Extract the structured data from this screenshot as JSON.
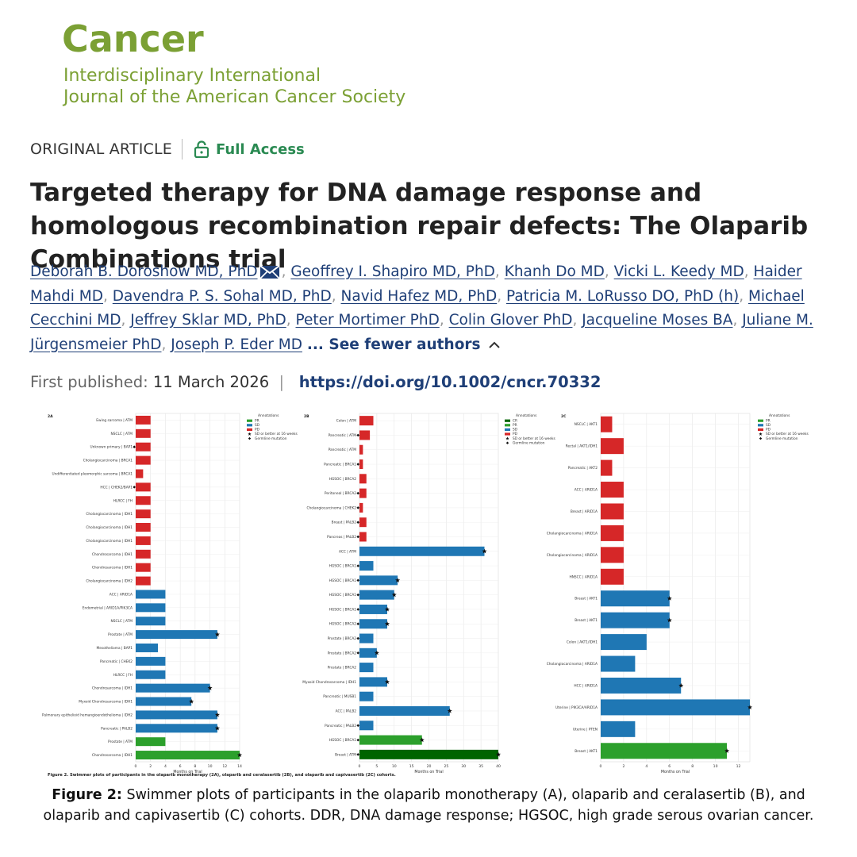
{
  "header": {
    "journal": "Cancer",
    "subtitle_line1": "Interdisciplinary International",
    "subtitle_line2": "Journal of the American Cancer Society"
  },
  "article": {
    "type": "ORIGINAL ARTICLE",
    "access": "Full Access",
    "title": "Targeted therapy for DNA damage response and homologous recombination repair defects: The Olaparib Combinations trial",
    "authors": [
      "Deborah B. Doroshow MD, PhD",
      "Geoffrey I. Shapiro MD, PhD",
      "Khanh Do MD",
      "Vicki L. Keedy MD",
      "Haider Mahdi MD",
      "Davendra P. S. Sohal MD, PhD",
      "Navid Hafez MD, PhD",
      "Patricia M. LoRusso DO, PhD (h)",
      "Michael Cecchini MD",
      "Jeffrey Sklar MD, PhD",
      "Peter Mortimer PhD",
      "Colin Glover PhD",
      "Jacqueline Moses BA",
      "Juliane M. Jürgensmeier PhD",
      "Joseph P. Eder MD"
    ],
    "see_fewer": "... See fewer authors",
    "published_label": "First published:",
    "published_date": "11 March 2026",
    "doi": "https://doi.org/10.1002/cncr.70332"
  },
  "figure": {
    "inner_caption": "Figure 2. Swimmer plots of participants in the olaparib monotherapy (2A), olaparib and ceralasertib (2B), and olaparib and capivasertib (2C) cohorts.",
    "caption_label": "Figure 2:",
    "caption_text": " Swimmer plots of participants in the olaparib monotherapy (A), olaparib and ceralasertib (B), and olaparib and capivasertib (C) cohorts. DDR, DNA damage response; HGSOC, high grade serous ovarian cancer."
  },
  "chart_data": [
    {
      "type": "bar",
      "panel": "2A",
      "orientation": "horizontal",
      "xlabel": "Months on Trial",
      "xlim": [
        0,
        14
      ],
      "xticks": [
        0,
        2,
        4,
        6,
        8,
        10,
        12,
        14
      ],
      "grid": true,
      "legend": {
        "title": "Annotations",
        "position": "top-right",
        "entries": [
          {
            "label": "PR",
            "color": "#2ca02c",
            "kind": "patch"
          },
          {
            "label": "SD",
            "color": "#1f77b4",
            "kind": "patch"
          },
          {
            "label": "PD",
            "color": "#d62728",
            "kind": "patch"
          },
          {
            "label": "SD or better at 16 weeks",
            "kind": "star"
          },
          {
            "label": "Germline mutation",
            "kind": "diamond"
          }
        ]
      },
      "rows": [
        {
          "label": "Ewing sarcoma | ATM",
          "value": 2,
          "response": "PD"
        },
        {
          "label": "NSCLC | ATM",
          "value": 2,
          "response": "PD"
        },
        {
          "label": "Unknown primary | BAP1",
          "value": 2,
          "response": "PD",
          "germline": true
        },
        {
          "label": "Cholangiocarcinoma | BRCA1",
          "value": 2,
          "response": "PD"
        },
        {
          "label": "Undifferentiated pleomorphic sarcoma | BRCA1",
          "value": 1,
          "response": "PD"
        },
        {
          "label": "HCC | CHEK2/BAP1",
          "value": 2,
          "response": "PD",
          "germline": true
        },
        {
          "label": "HLRCC | FH",
          "value": 2,
          "response": "PD"
        },
        {
          "label": "Cholangiocarcinoma | IDH1",
          "value": 2,
          "response": "PD"
        },
        {
          "label": "Cholangiocarcinoma | IDH1",
          "value": 2,
          "response": "PD"
        },
        {
          "label": "Cholangiocarcinoma | IDH1",
          "value": 2,
          "response": "PD"
        },
        {
          "label": "Chondrosarcoma | IDH1",
          "value": 2,
          "response": "PD"
        },
        {
          "label": "Chondrosarcoma | IDH1",
          "value": 2,
          "response": "PD"
        },
        {
          "label": "Cholangiocarcinoma | IDH2",
          "value": 2,
          "response": "PD"
        },
        {
          "label": "ACC | ARID1A",
          "value": 4,
          "response": "SD"
        },
        {
          "label": "Endometrial | ARID1A/PIK3CA",
          "value": 4,
          "response": "SD"
        },
        {
          "label": "NSCLC | ATM",
          "value": 4,
          "response": "SD"
        },
        {
          "label": "Prostate | ATM",
          "value": 11,
          "response": "SD",
          "star": true
        },
        {
          "label": "Mesothelioma | BAP1",
          "value": 3,
          "response": "SD"
        },
        {
          "label": "Pancreatic | CHEK2",
          "value": 4,
          "response": "SD"
        },
        {
          "label": "HLRCC | FH",
          "value": 4,
          "response": "SD"
        },
        {
          "label": "Chondrosarcoma | IDH1",
          "value": 10,
          "response": "SD",
          "star": true
        },
        {
          "label": "Myxoid Chondrosarcoma | IDH1",
          "value": 7.5,
          "response": "SD",
          "star": true
        },
        {
          "label": "Pulmonary epithelioid hemangioendothelioma | IDH2",
          "value": 11,
          "response": "SD",
          "star": true
        },
        {
          "label": "Pancreatic | PALB2",
          "value": 11,
          "response": "SD",
          "star": true
        },
        {
          "label": "Prostate | ATM",
          "value": 4,
          "response": "PR"
        },
        {
          "label": "Chondrosarcoma | IDH1",
          "value": 14,
          "response": "PR",
          "star": true
        }
      ]
    },
    {
      "type": "bar",
      "panel": "2B",
      "orientation": "horizontal",
      "xlabel": "Months on Trial",
      "xlim": [
        0,
        40
      ],
      "xticks": [
        0,
        5,
        10,
        15,
        20,
        25,
        30,
        35,
        40
      ],
      "grid": true,
      "legend": {
        "title": "Annotations",
        "position": "top-right",
        "entries": [
          {
            "label": "CR",
            "color": "#006400",
            "kind": "patch"
          },
          {
            "label": "PR",
            "color": "#2ca02c",
            "kind": "patch"
          },
          {
            "label": "SD",
            "color": "#1f77b4",
            "kind": "patch"
          },
          {
            "label": "PD",
            "color": "#d62728",
            "kind": "patch"
          },
          {
            "label": "SD or better at 16 weeks",
            "kind": "star"
          },
          {
            "label": "Germline mutation",
            "kind": "diamond"
          }
        ]
      },
      "rows": [
        {
          "label": "Colon | ATM",
          "value": 4,
          "response": "PD"
        },
        {
          "label": "Pancreatic | ATM",
          "value": 3,
          "response": "PD",
          "germline": true
        },
        {
          "label": "Pancreatic | ATM",
          "value": 1,
          "response": "PD"
        },
        {
          "label": "Pancreatic | BRCA1",
          "value": 1,
          "response": "PD",
          "germline": true
        },
        {
          "label": "HGSOC | BRCA2",
          "value": 2,
          "response": "PD"
        },
        {
          "label": "Peritoneal | BRCA2",
          "value": 2,
          "response": "PD",
          "germline": true
        },
        {
          "label": "Cholangiocarcinoma | CHEK2",
          "value": 1,
          "response": "PD",
          "germline": true
        },
        {
          "label": "Breast | PALB2",
          "value": 2,
          "response": "PD",
          "germline": true
        },
        {
          "label": "Pancreas | PALB2",
          "value": 2,
          "response": "PD",
          "germline": true
        },
        {
          "label": "ACC | ATM",
          "value": 36,
          "response": "SD",
          "star": true
        },
        {
          "label": "HGSOC | BRCA1",
          "value": 4,
          "response": "SD",
          "germline": true
        },
        {
          "label": "HGSOC | BRCA1",
          "value": 11,
          "response": "SD",
          "star": true,
          "germline": true
        },
        {
          "label": "HGSOC | BRCA1",
          "value": 10,
          "response": "SD",
          "star": true,
          "germline": true
        },
        {
          "label": "HGSOC | BRCA1",
          "value": 8,
          "response": "SD",
          "star": true,
          "germline": true
        },
        {
          "label": "HGSOC | BRCA2",
          "value": 8,
          "response": "SD",
          "star": true,
          "germline": true
        },
        {
          "label": "Prostate | BRCA2",
          "value": 4,
          "response": "SD",
          "germline": true
        },
        {
          "label": "Prostate | BRCA2",
          "value": 5,
          "response": "SD",
          "star": true,
          "germline": true
        },
        {
          "label": "Prostate | BRCA2",
          "value": 4,
          "response": "SD"
        },
        {
          "label": "Myxoid Chondrosarcoma | IDH1",
          "value": 8,
          "response": "SD",
          "star": true
        },
        {
          "label": "Pancreatic | MUSB1",
          "value": 4,
          "response": "SD"
        },
        {
          "label": "ACC | PALB2",
          "value": 26,
          "response": "SD",
          "star": true
        },
        {
          "label": "Pancreatic | PALB2",
          "value": 4,
          "response": "SD",
          "germline": true
        },
        {
          "label": "HGSOC | BRCA1",
          "value": 18,
          "response": "PR",
          "star": true,
          "germline": true
        },
        {
          "label": "Breast | ATM",
          "value": 40,
          "response": "CR",
          "star": true,
          "germline": true
        }
      ]
    },
    {
      "type": "bar",
      "panel": "2C",
      "orientation": "horizontal",
      "xlabel": "Months on Trial",
      "xlim": [
        0,
        13
      ],
      "xticks": [
        0,
        2,
        4,
        6,
        8,
        10,
        12
      ],
      "grid": true,
      "legend": {
        "title": "Annotations",
        "position": "top-right",
        "entries": [
          {
            "label": "PR",
            "color": "#2ca02c",
            "kind": "patch"
          },
          {
            "label": "SD",
            "color": "#1f77b4",
            "kind": "patch"
          },
          {
            "label": "PD",
            "color": "#d62728",
            "kind": "patch"
          },
          {
            "label": "SD or better at 16 weeks",
            "kind": "star"
          },
          {
            "label": "Germline mutation",
            "kind": "diamond"
          }
        ]
      },
      "rows": [
        {
          "label": "NSCLC | AKT1",
          "value": 1,
          "response": "PD"
        },
        {
          "label": "Rectal | AKT1/IDH1",
          "value": 2,
          "response": "PD"
        },
        {
          "label": "Pancreatic | AKT2",
          "value": 1,
          "response": "PD"
        },
        {
          "label": "ACC | ARID1A",
          "value": 2,
          "response": "PD"
        },
        {
          "label": "Breast | ARID1A",
          "value": 2,
          "response": "PD"
        },
        {
          "label": "Cholangiocarcinoma | ARID1A",
          "value": 2,
          "response": "PD"
        },
        {
          "label": "Cholangiocarcinoma | ARID1A",
          "value": 2,
          "response": "PD"
        },
        {
          "label": "HNSCC | ARID1A",
          "value": 2,
          "response": "PD"
        },
        {
          "label": "Breast | AKT1",
          "value": 6,
          "response": "SD",
          "star": true
        },
        {
          "label": "Breast | AKT1",
          "value": 6,
          "response": "SD",
          "star": true
        },
        {
          "label": "Colon | AKT1/IDH1",
          "value": 4,
          "response": "SD"
        },
        {
          "label": "Cholangiocarcinoma | ARID1A",
          "value": 3,
          "response": "SD"
        },
        {
          "label": "HCC | ARID1A",
          "value": 7,
          "response": "SD",
          "star": true
        },
        {
          "label": "Uterine | PIK3CA/ARID1A",
          "value": 13,
          "response": "SD",
          "star": true
        },
        {
          "label": "Uterine | PTEN",
          "value": 3,
          "response": "SD"
        },
        {
          "label": "Breast | AKT1",
          "value": 11,
          "response": "PR",
          "star": true
        }
      ]
    }
  ]
}
